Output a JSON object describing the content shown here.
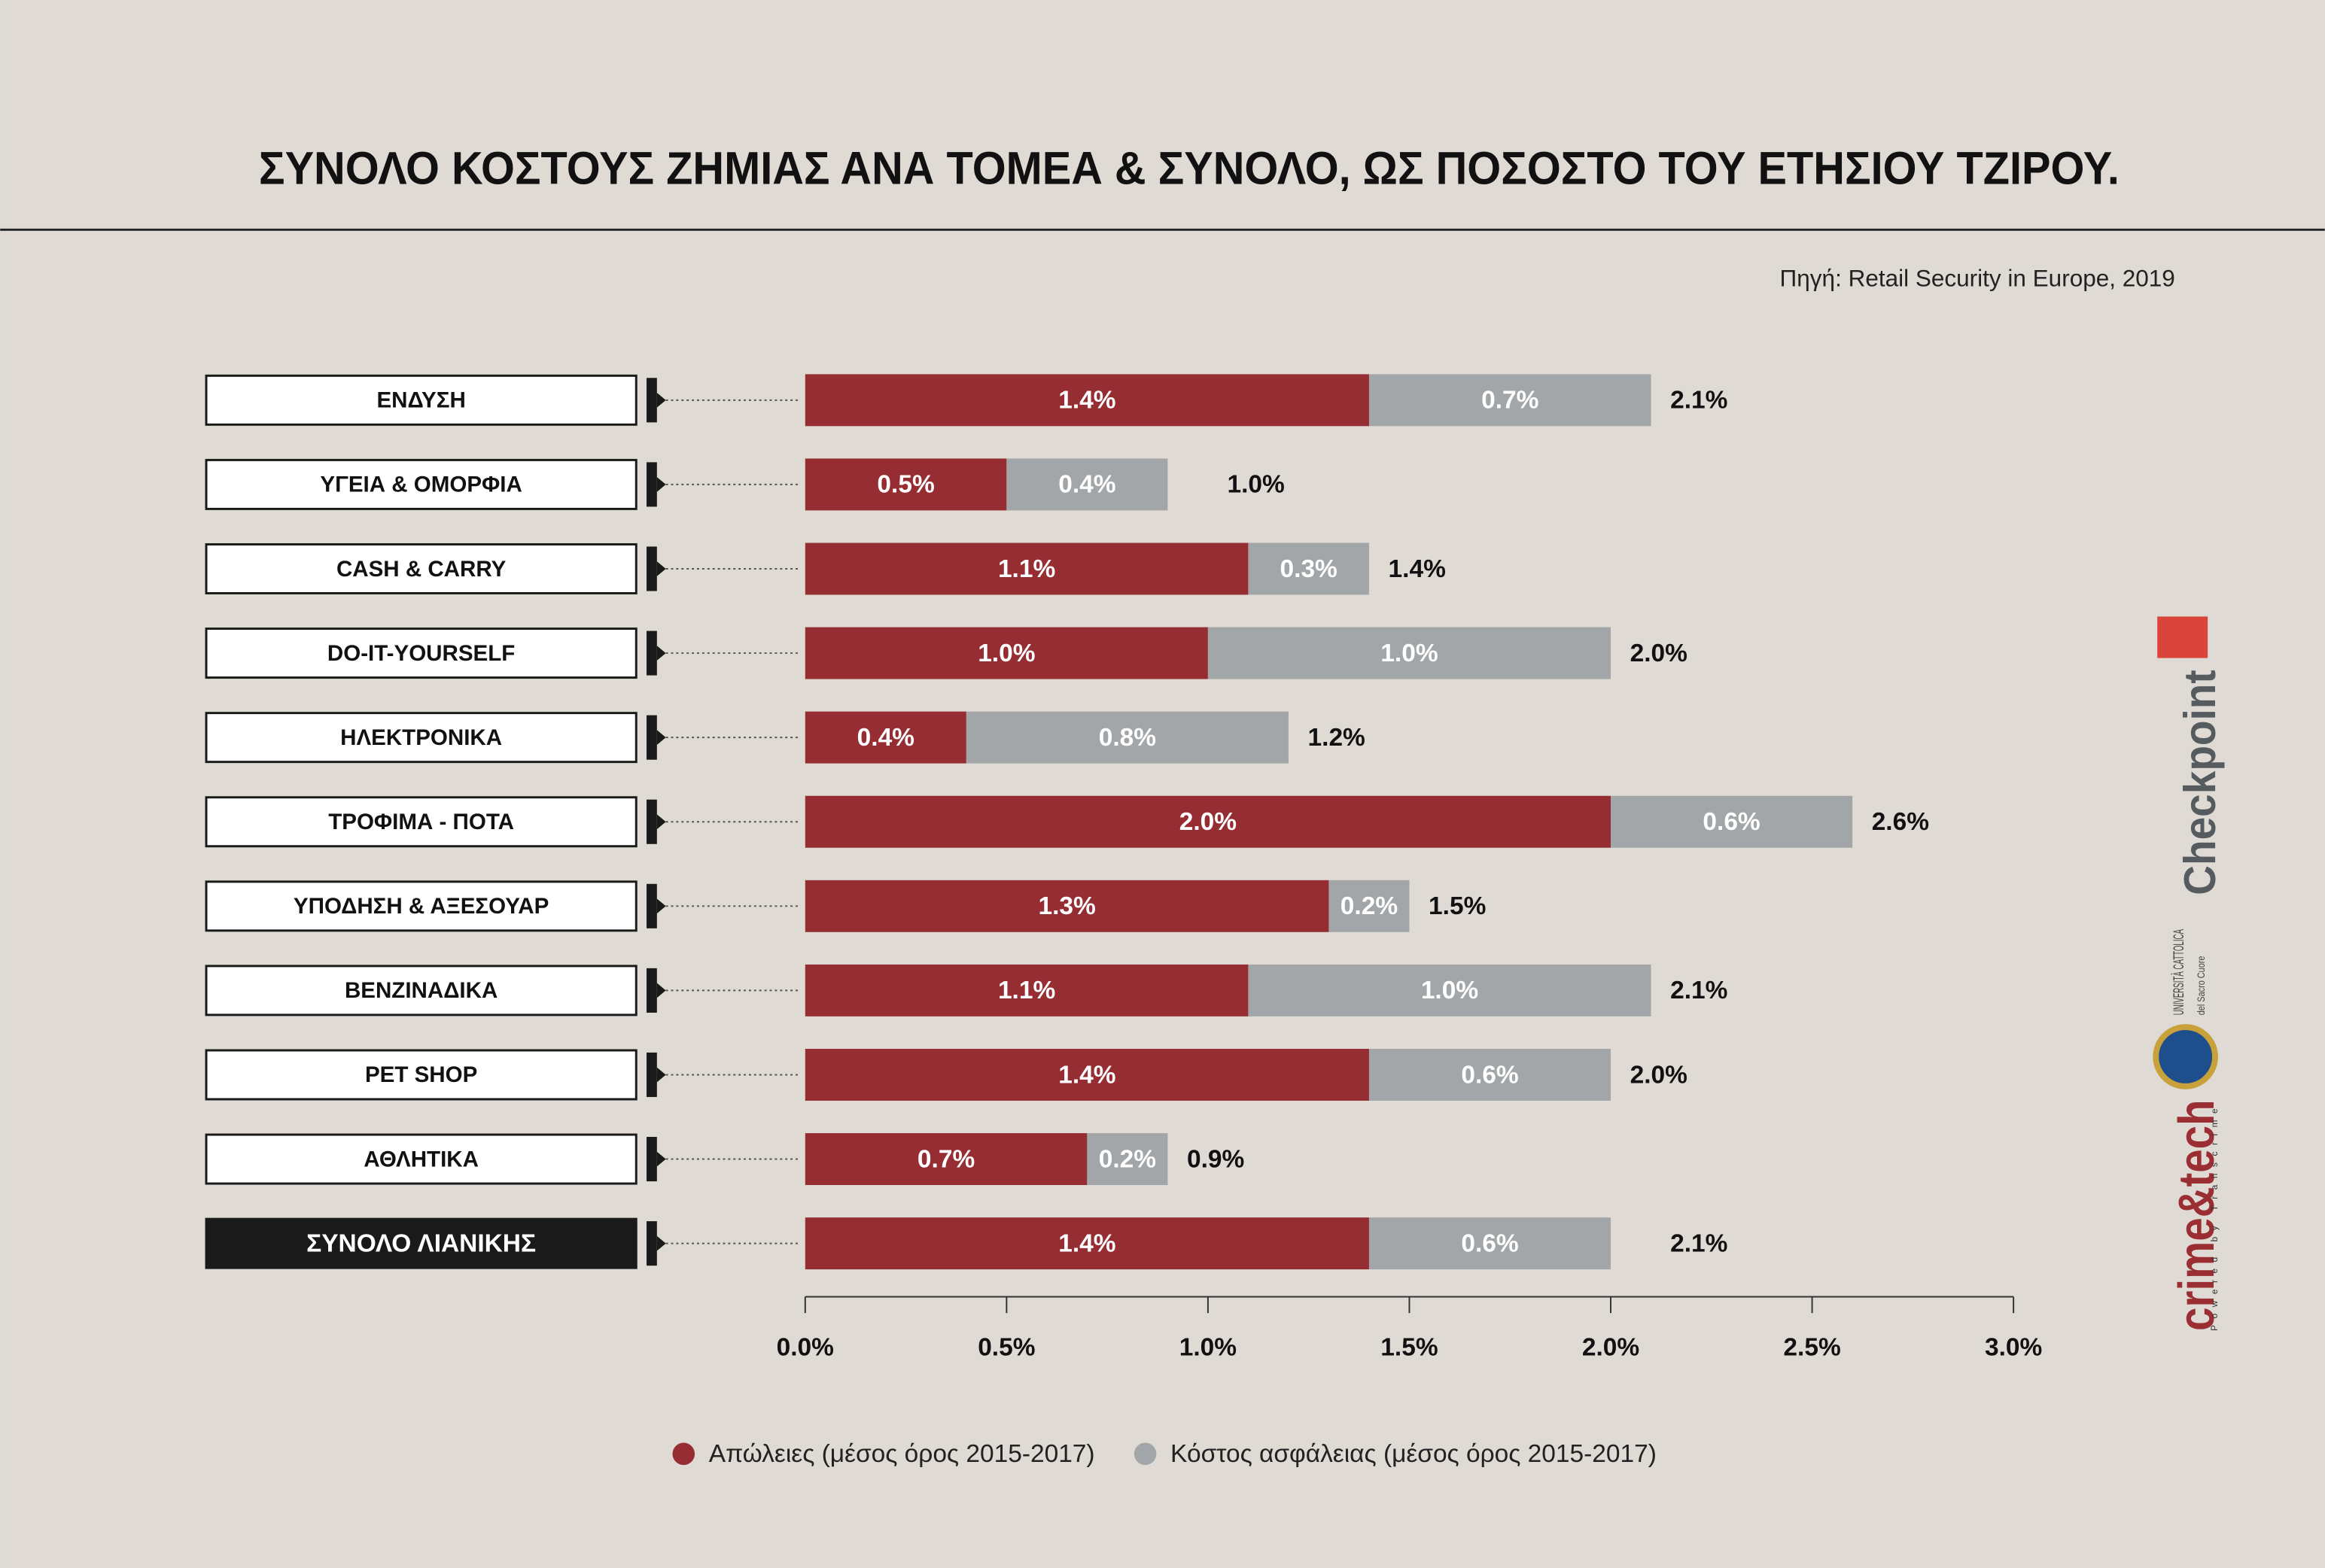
{
  "chart_data": {
    "type": "stacked-barh",
    "title": "ΣΥΝΟΛΟ ΚΟΣΤΟΥΣ ΖΗΜΙΑΣ ΑΝΑ ΤΟΜΕΑ & ΣΥΝΟΛΟ, ΩΣ ΠΟΣΟΣΤΟ ΤΟΥ ΕΤΗΣΙΟΥ ΤΖΙΡΟΥ.",
    "subtitle": "Πηγή: Retail Security in Europe, 2019",
    "categories": [
      "ΕΝΔΥΣΗ",
      "ΥΓΕΙΑ & ΟΜΟΡΦΙΑ",
      "CASH  & CARRY",
      "DO-IT-YOURSELF",
      "ΗΛΕΚΤΡΟΝΙΚΑ",
      "ΤΡΟΦΙΜΑ - ΠΟΤΑ",
      "ΥΠΟΔΗΣΗ & ΑΞΕΣΟΥΑΡ",
      "ΒΕΝΖΙΝΑΔΙΚΑ",
      "PET SHOP",
      "ΑΘΛΗΤΙΚΑ",
      "ΣΥΝΟΛΟ ΛΙΑΝΙΚΗΣ"
    ],
    "series": [
      {
        "name": "Απώλειες (μέσος όρος 2015-2017)",
        "color": "#962d32",
        "values": [
          1.4,
          0.5,
          1.1,
          1.0,
          0.4,
          2.0,
          1.3,
          1.1,
          1.4,
          0.7,
          1.4
        ],
        "value_labels": [
          "1.4%",
          "0.5%",
          "1.1%",
          "1.0%",
          "0.4%",
          "2.0%",
          "1.3%",
          "1.1%",
          "1.4%",
          "0.7%",
          "1.4%"
        ]
      },
      {
        "name": "Κόστος ασφάλειας (μέσος όρος 2015-2017)",
        "color": "#a2a6a8",
        "values": [
          0.7,
          0.4,
          0.3,
          1.0,
          0.8,
          0.6,
          0.2,
          1.0,
          0.6,
          0.2,
          0.6
        ],
        "value_labels": [
          "0.7%",
          "0.4%",
          "0.3%",
          "1.0%",
          "0.8%",
          "0.6%",
          "0.2%",
          "1.0%",
          "0.6%",
          "0.2%",
          "0.6%"
        ]
      }
    ],
    "totals": [
      2.1,
      1.0,
      1.4,
      2.0,
      1.2,
      2.6,
      1.5,
      2.1,
      2.0,
      0.9,
      2.1
    ],
    "total_labels": [
      "2.1%",
      "1.0%",
      "1.4%",
      "2.0%",
      "1.2%",
      "2.6%",
      "1.5%",
      "2.1%",
      "2.0%",
      "0.9%",
      "2.1%"
    ],
    "xlim": [
      0,
      3
    ],
    "xticks": [
      {
        "value": 0,
        "label": "0.0%"
      },
      {
        "value": 0.5,
        "label": "0.5%"
      },
      {
        "value": 1,
        "label": "1.0%"
      },
      {
        "value": 1.5,
        "label": "1.5%"
      },
      {
        "value": 2,
        "label": "2.0%"
      },
      {
        "value": 2.5,
        "label": "2.5%"
      },
      {
        "value": 3,
        "label": "3.0%"
      }
    ],
    "legend": "bottom"
  },
  "logos": {
    "checkpoint": "Checkpoint",
    "university": "UNIVERSITÀ CATTOLICA",
    "university_sub": "del Sacro Cuore",
    "crimetech": "crime&tech",
    "powered": "Powered by Transcrime"
  }
}
